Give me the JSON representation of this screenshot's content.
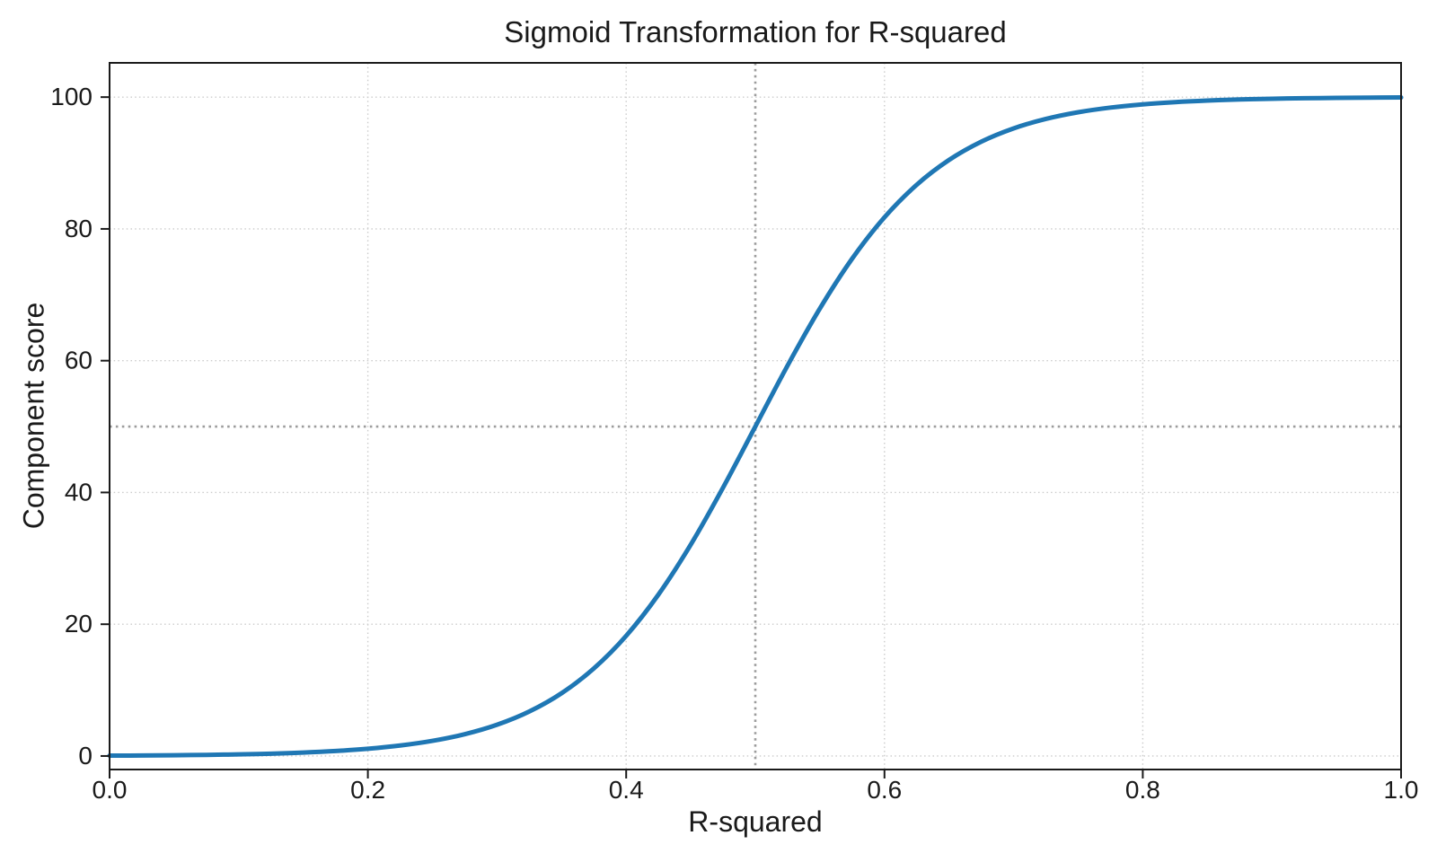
{
  "chart_data": {
    "type": "line",
    "title": "Sigmoid Transformation for R-squared",
    "xlabel": "R-squared",
    "ylabel": "Component score",
    "xlim": [
      0.0,
      1.0
    ],
    "ylim": [
      -2.05,
      105.2
    ],
    "grid": true,
    "legend": false,
    "x_ticks": {
      "values": [
        0.0,
        0.2,
        0.4,
        0.6,
        0.8,
        1.0
      ],
      "labels": [
        "0.0",
        "0.2",
        "0.4",
        "0.6",
        "0.8",
        "1.0"
      ]
    },
    "y_ticks": {
      "values": [
        0,
        20,
        40,
        60,
        80,
        100
      ],
      "labels": [
        "0",
        "20",
        "40",
        "60",
        "80",
        "100"
      ]
    },
    "reference_lines": [
      {
        "axis": "x",
        "value": 0.5
      },
      {
        "axis": "y",
        "value": 50
      }
    ],
    "series": [
      {
        "name": "sigmoid-curve",
        "color": "#1f77b4",
        "x": [
          0.0,
          0.025,
          0.05,
          0.075,
          0.1,
          0.125,
          0.15,
          0.175,
          0.2,
          0.225,
          0.25,
          0.275,
          0.3,
          0.325,
          0.35,
          0.375,
          0.4,
          0.425,
          0.45,
          0.475,
          0.5,
          0.525,
          0.55,
          0.575,
          0.6,
          0.625,
          0.65,
          0.675,
          0.7,
          0.725,
          0.75,
          0.775,
          0.8,
          0.825,
          0.85,
          0.875,
          0.9,
          0.925,
          0.95,
          0.975,
          1.0
        ],
        "y": [
          0.055,
          0.08,
          0.117,
          0.17,
          0.247,
          0.359,
          0.522,
          0.758,
          1.099,
          1.591,
          2.298,
          3.309,
          4.743,
          6.755,
          9.535,
          13.297,
          18.243,
          24.508,
          32.082,
          40.733,
          50.0,
          59.267,
          67.918,
          75.492,
          81.757,
          86.703,
          90.465,
          93.245,
          95.257,
          96.691,
          97.702,
          98.409,
          98.901,
          99.242,
          99.478,
          99.641,
          99.753,
          99.83,
          99.883,
          99.92,
          99.945
        ]
      }
    ],
    "colors": {
      "line": "#1f77b4",
      "grid": "#cbcbcb",
      "reference": "#9c9c9c",
      "axes": "#1a1a1a",
      "background": "#ffffff"
    }
  }
}
